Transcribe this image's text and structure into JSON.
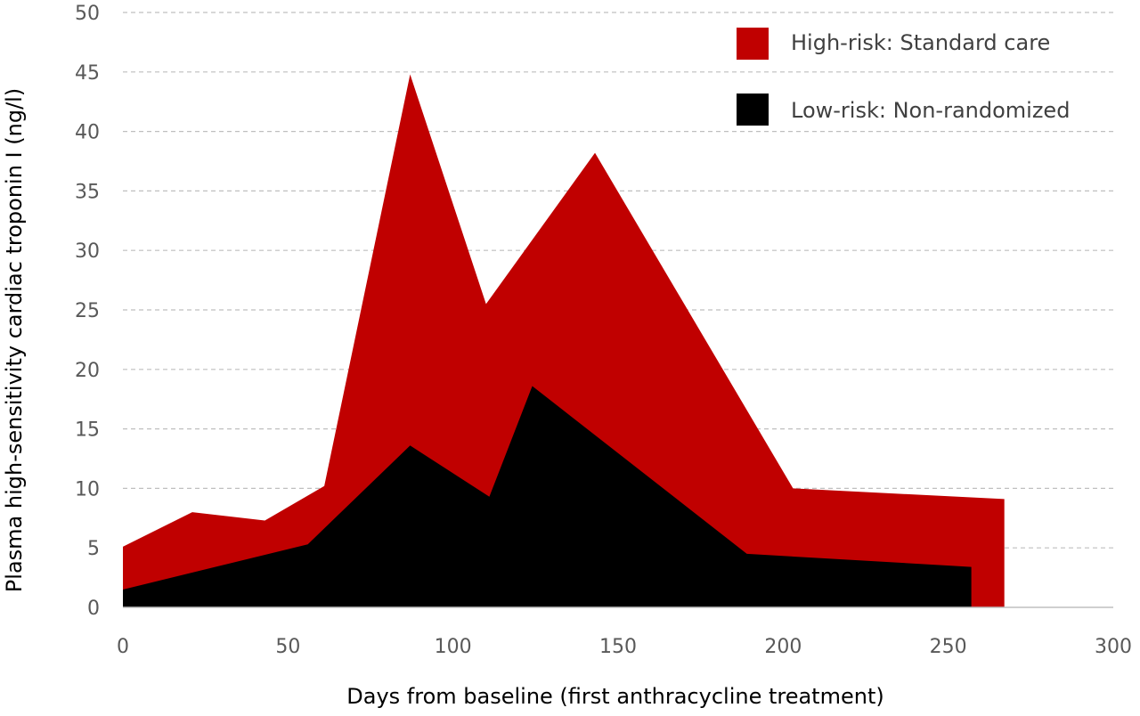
{
  "chart_data": {
    "type": "area",
    "xlabel": "Days from baseline (first anthracycline treatment)",
    "ylabel": "Plasma high-sensitivity cardiac troponin I (ng/l)",
    "xlim": [
      0,
      300
    ],
    "ylim": [
      0,
      50
    ],
    "x_ticks": [
      "0",
      "50",
      "100",
      "150",
      "200",
      "250",
      "300"
    ],
    "y_ticks": [
      "0",
      "5",
      "10",
      "15",
      "20",
      "25",
      "30",
      "35",
      "40",
      "45",
      "50"
    ],
    "grid": "horizontal-dashed",
    "legend_position": "top-right",
    "series": [
      {
        "name": "High-risk: Standard care",
        "color": "#c00000",
        "x": [
          0,
          21,
          43,
          61,
          87,
          110,
          143,
          203,
          267
        ],
        "y": [
          5.1,
          8.0,
          7.3,
          10.2,
          44.8,
          25.5,
          38.2,
          10.0,
          9.1
        ]
      },
      {
        "name": "Low-risk: Non-randomized",
        "color": "#000000",
        "x": [
          0,
          56,
          87,
          111,
          124,
          189,
          257
        ],
        "y": [
          1.5,
          5.3,
          13.6,
          9.3,
          18.6,
          4.5,
          3.4
        ]
      }
    ]
  }
}
